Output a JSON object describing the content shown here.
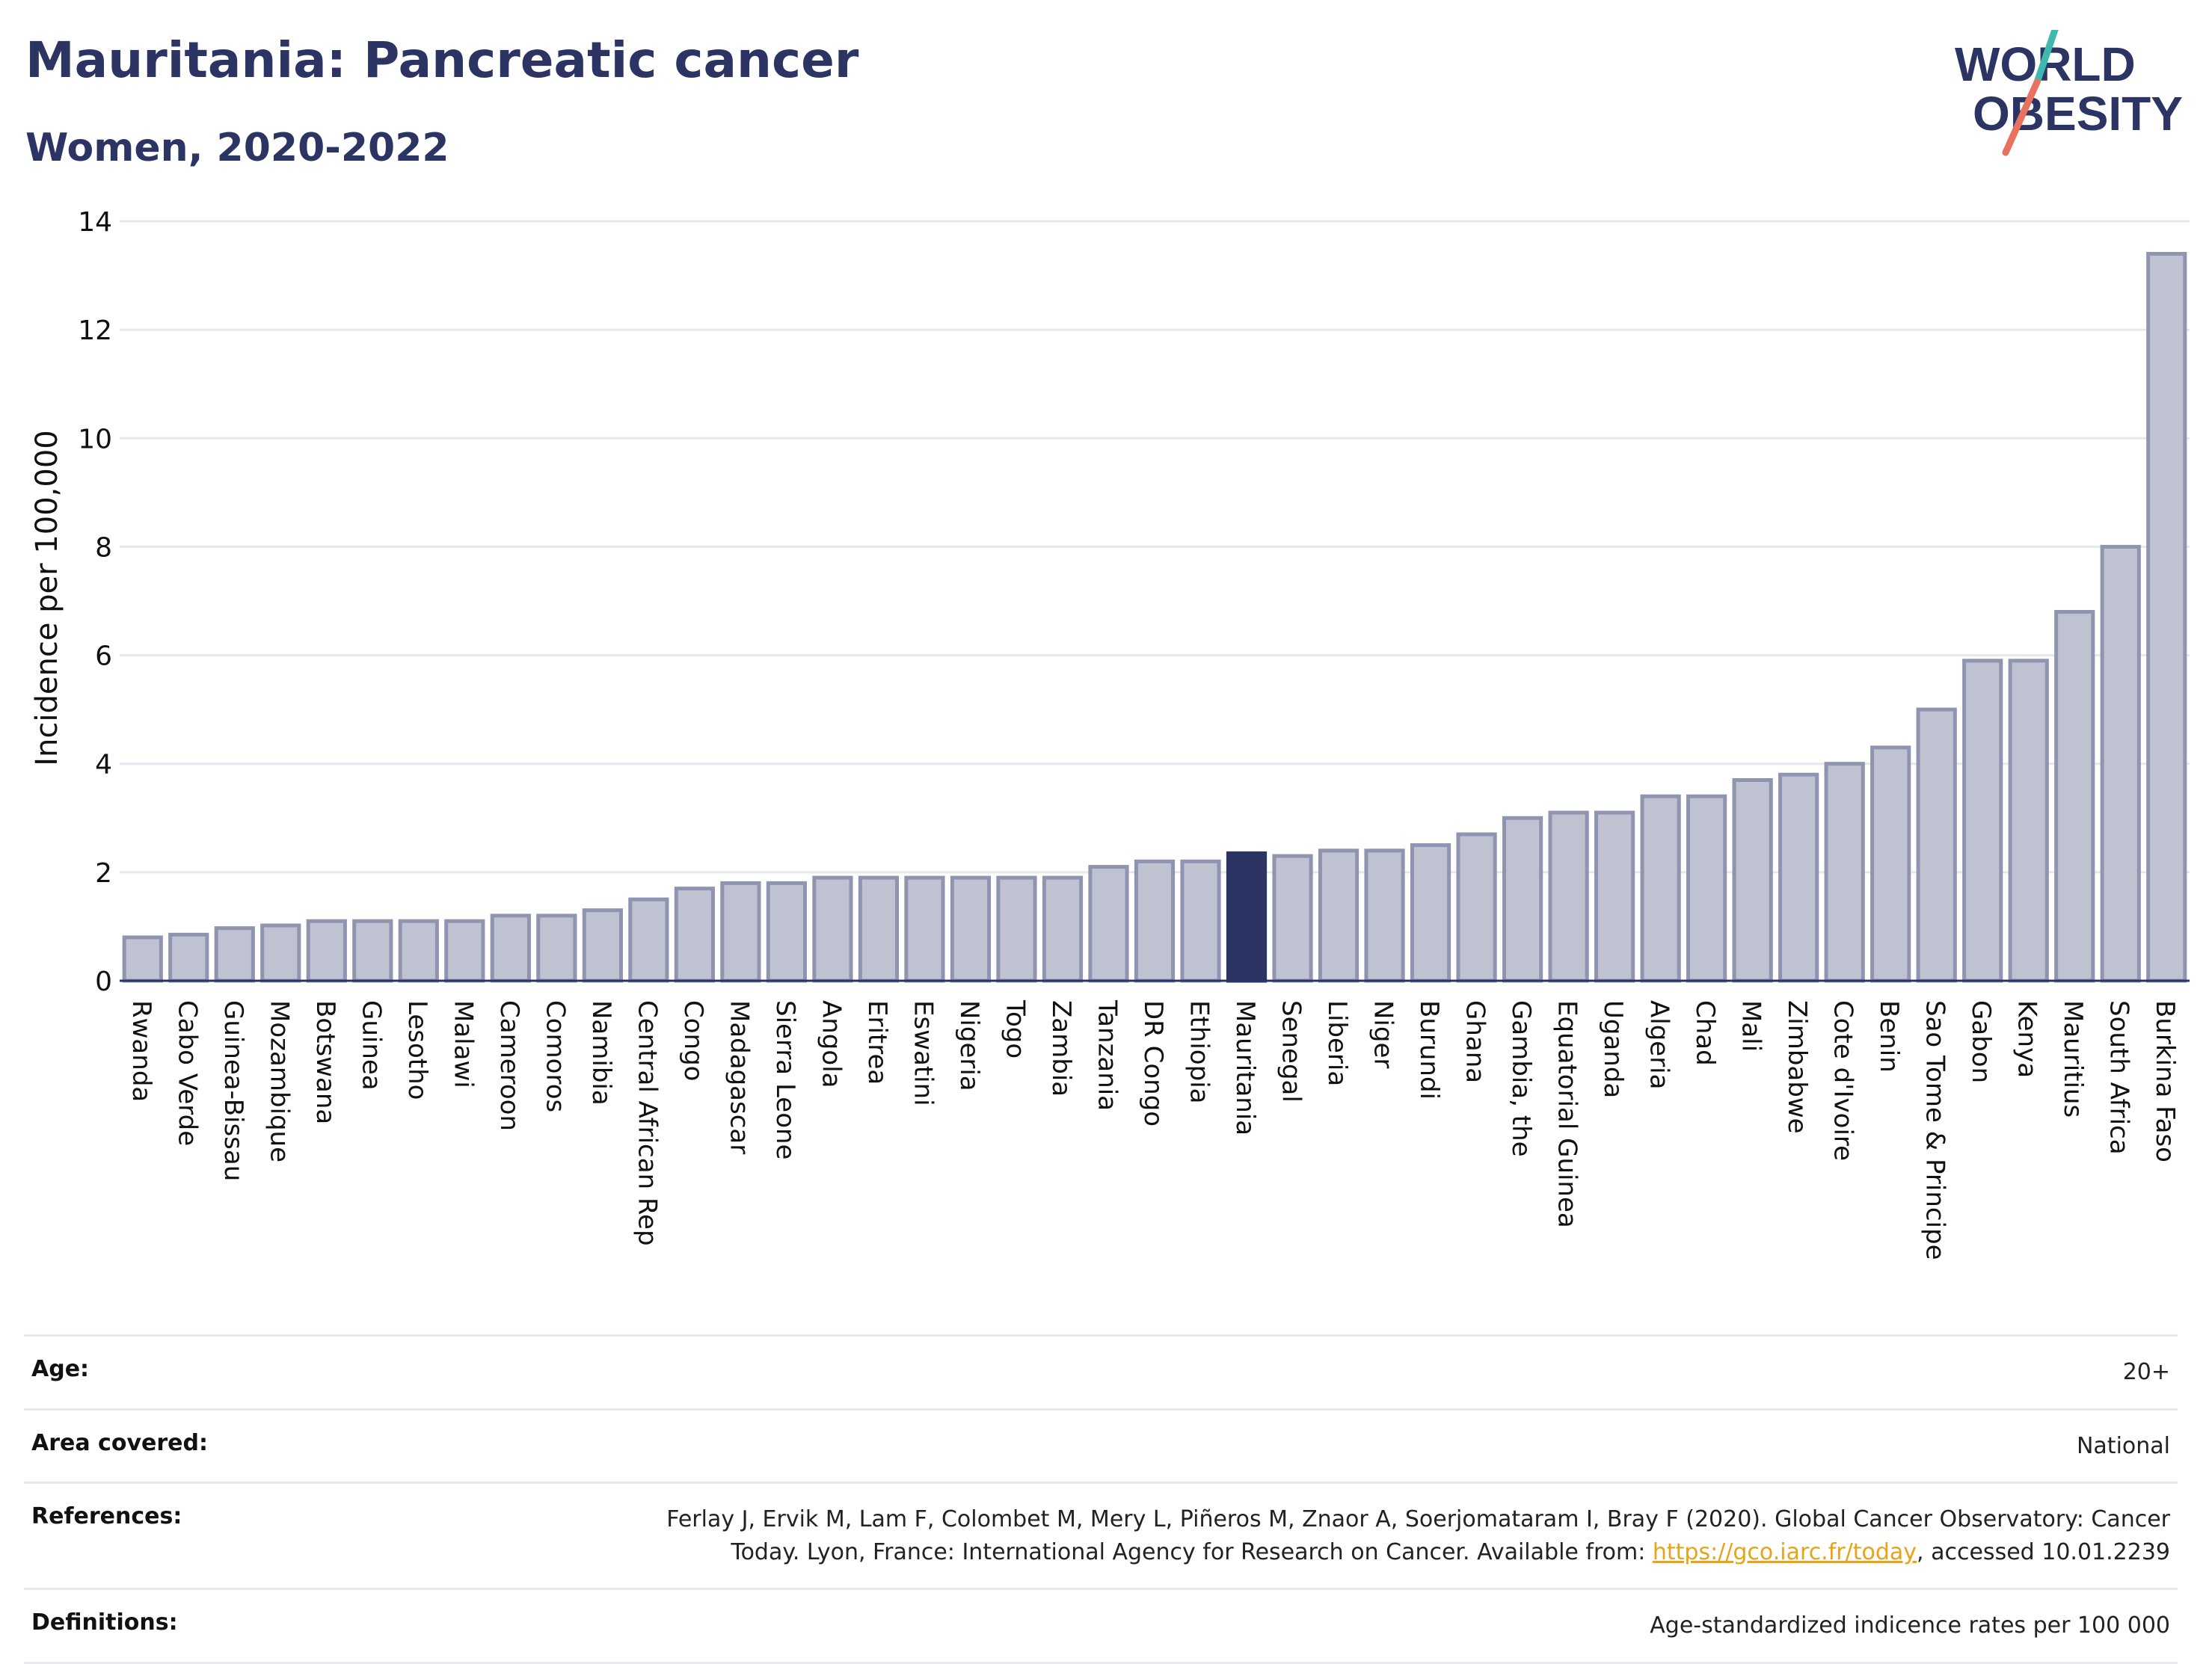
{
  "header": {
    "title": "Mauritania: Pancreatic cancer",
    "subtitle": "Women, 2020-2022"
  },
  "logo": {
    "line1": "WORLD",
    "line2": "OBESITY",
    "name": "world-obesity-logo"
  },
  "colors": {
    "bar_default": "#bfc2d1",
    "bar_stroke": "#8f94b0",
    "bar_highlight": "#2b3463",
    "title": "#2b3463",
    "link": "#e8a317"
  },
  "chart_data": {
    "type": "bar",
    "ylabel": "Incidence per 100,000",
    "xlabel": "",
    "ylim": [
      0,
      14
    ],
    "yticks": [
      0,
      2,
      4,
      6,
      8,
      10,
      12,
      14
    ],
    "grid": true,
    "highlight": "Mauritania",
    "categories": [
      "Rwanda",
      "Cabo Verde",
      "Guinea-Bissau",
      "Mozambique",
      "Botswana",
      "Guinea",
      "Lesotho",
      "Malawi",
      "Cameroon",
      "Comoros",
      "Namibia",
      "Central African Rep",
      "Congo",
      "Madagascar",
      "Sierra Leone",
      "Angola",
      "Eritrea",
      "Eswatini",
      "Nigeria",
      "Togo",
      "Zambia",
      "Tanzania",
      "DR Congo",
      "Ethiopia",
      "Mauritania",
      "Senegal",
      "Liberia",
      "Niger",
      "Burundi",
      "Ghana",
      "Gambia, the",
      "Equatorial Guinea",
      "Uganda",
      "Algeria",
      "Chad",
      "Mali",
      "Zimbabwe",
      "Cote d'Ivoire",
      "Benin",
      "Sao Tome & Principe",
      "Gabon",
      "Kenya",
      "Mauritius",
      "South Africa",
      "Burkina Faso"
    ],
    "values": [
      0.8,
      0.85,
      0.97,
      1.02,
      1.1,
      1.1,
      1.1,
      1.1,
      1.2,
      1.2,
      1.3,
      1.5,
      1.7,
      1.8,
      1.8,
      1.9,
      1.9,
      1.9,
      1.9,
      1.9,
      1.9,
      2.1,
      2.2,
      2.2,
      2.35,
      2.3,
      2.4,
      2.4,
      2.5,
      2.7,
      3.0,
      3.1,
      3.1,
      3.4,
      3.4,
      3.7,
      3.8,
      4.0,
      4.3,
      5.0,
      5.9,
      5.9,
      6.8,
      8.0,
      13.4
    ]
  },
  "details": {
    "age_label": "Age:",
    "age_value": "20+",
    "area_label": "Area covered:",
    "area_value": "National",
    "references_label": "References:",
    "references_line1": "Ferlay J, Ervik M, Lam F, Colombet M, Mery L, Piñeros M, Znaor A, Soerjomataram I, Bray F (2020). Global Cancer Observatory: Cancer",
    "references_line2_pre": "Today. Lyon, France: International Agency for Research on Cancer. Available from: ",
    "references_link": "https://gco.iarc.fr/today",
    "references_line2_post": ", accessed 10.01.2239",
    "definitions_label": "Definitions:",
    "definitions_value": "Age-standardized indicence rates per 100 000"
  }
}
